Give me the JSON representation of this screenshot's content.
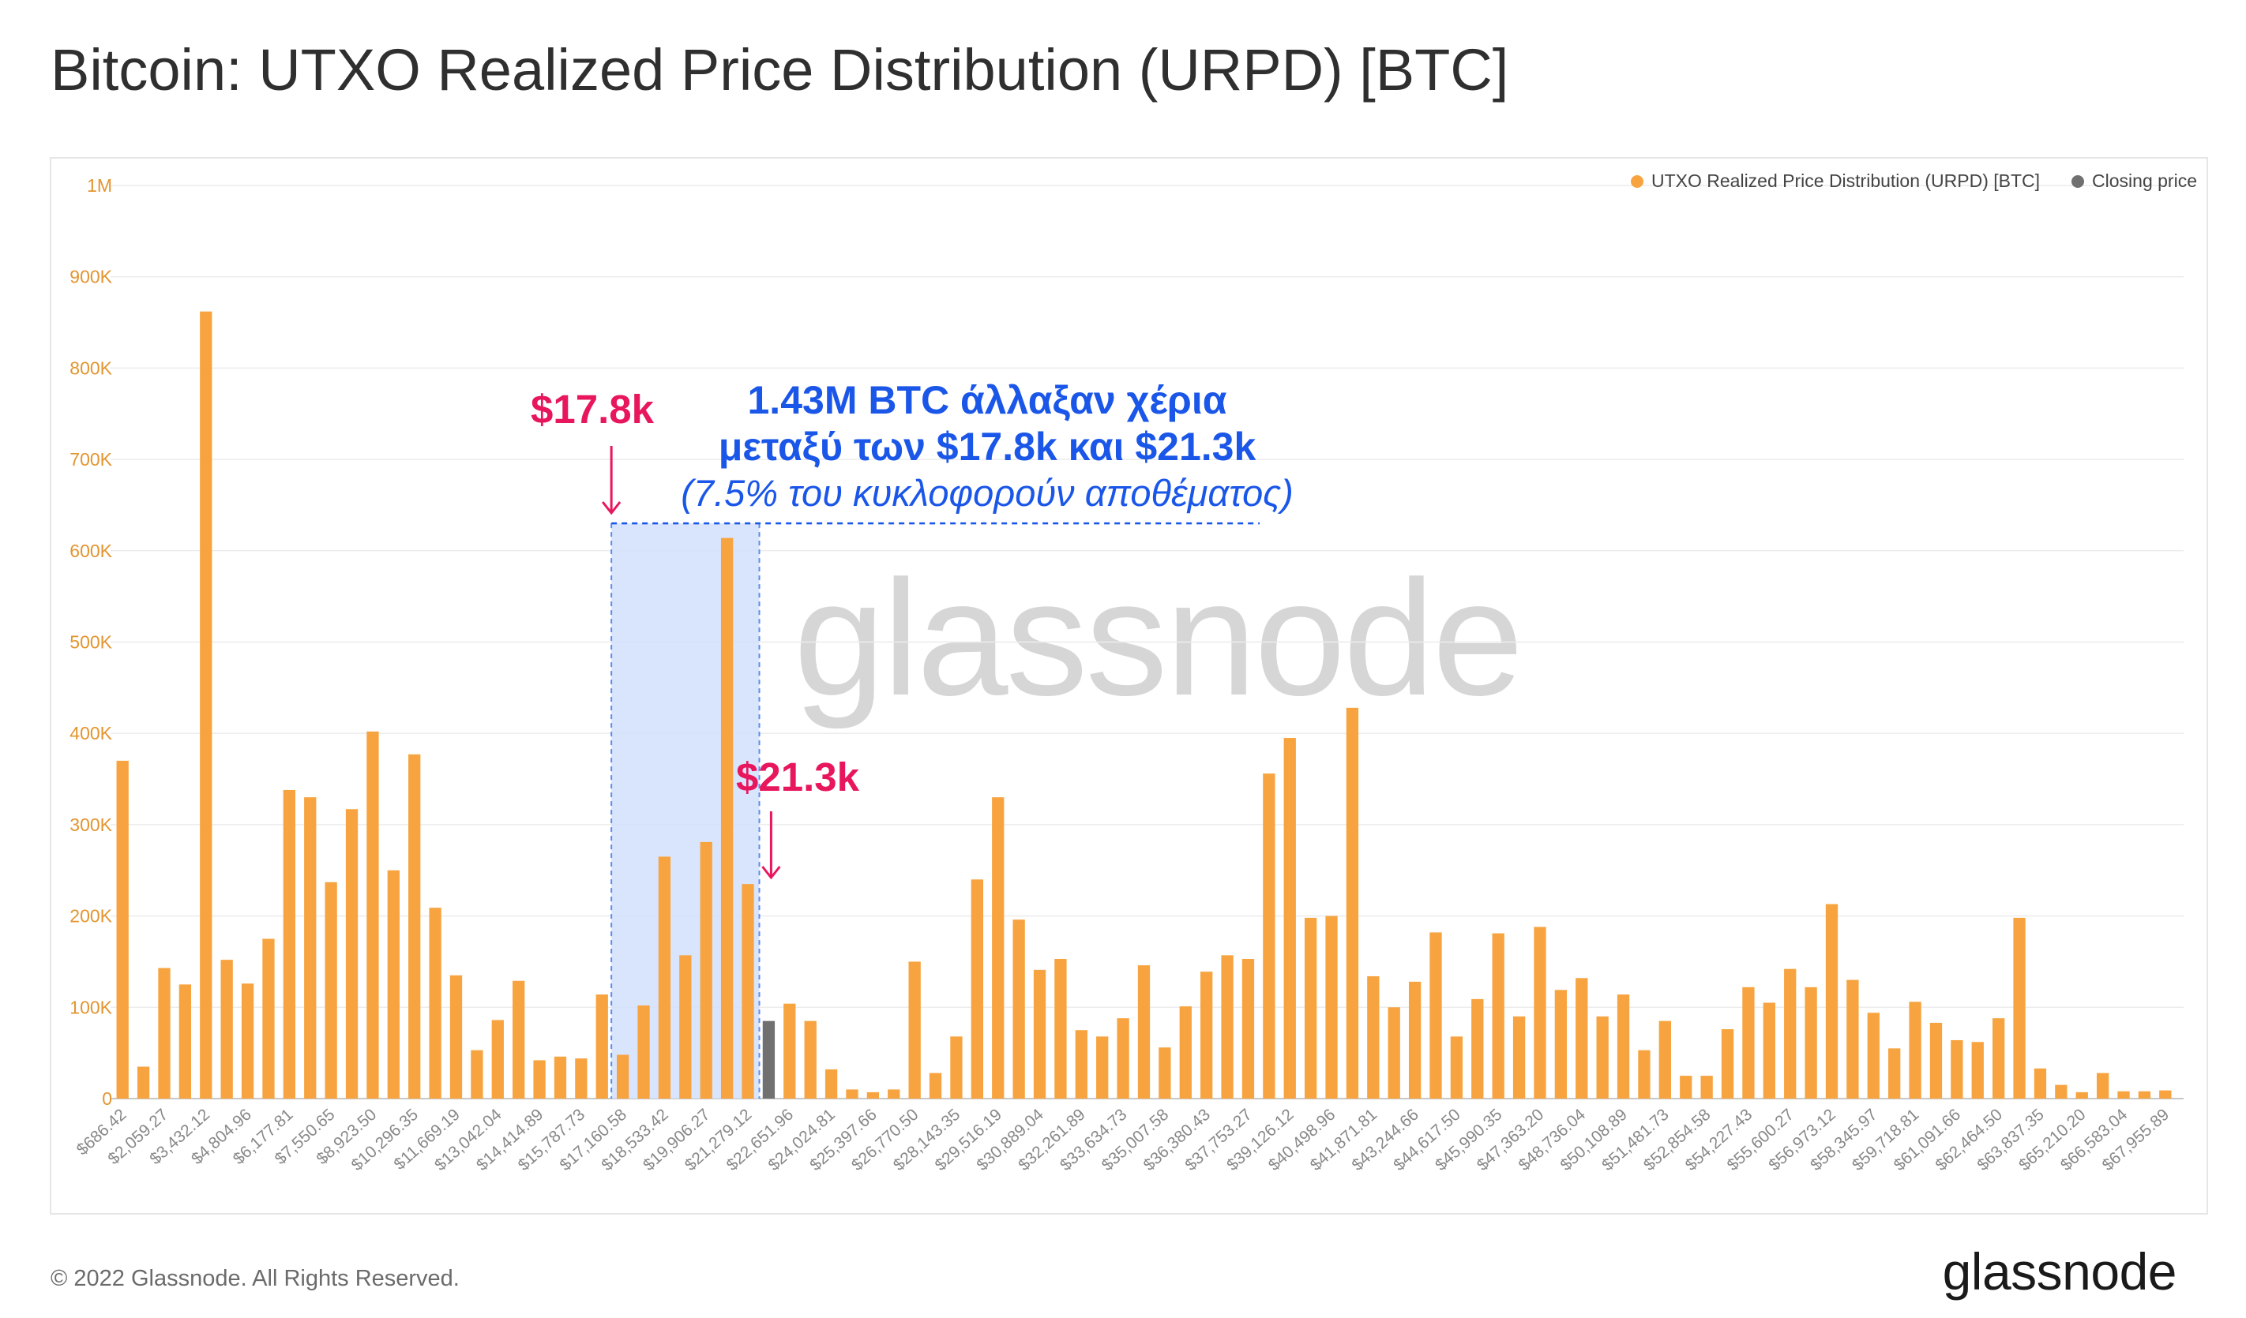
{
  "title": "Bitcoin: UTXO Realized Price Distribution (URPD) [BTC]",
  "footer": {
    "copyright": "© 2022 Glassnode. All Rights Reserved.",
    "logo_text": "glassnode"
  },
  "watermark": "glassnode",
  "legend": [
    {
      "label": "UTXO Realized Price Distribution (URPD) [BTC]",
      "color": "#f7a440"
    },
    {
      "label": "Closing price",
      "color": "#707070"
    }
  ],
  "annotations": {
    "low_price": "$17.8k",
    "high_price": "$21.3k",
    "line1": "1.43M BTC άλλαξαν χέρια",
    "line2": "μεταξύ των $17.8k και $21.3k",
    "line3": "(7.5% του κυκλοφορούν αποθέματος)",
    "highlight_color": "#d2e1fb",
    "accent_blue": "#1a56e8",
    "accent_pink": "#e8175d"
  },
  "chart_data": {
    "type": "bar",
    "title": "Bitcoin: UTXO Realized Price Distribution (URPD) [BTC]",
    "xlabel": "",
    "ylabel": "",
    "ylim": [
      0,
      1000000
    ],
    "y_ticks": [
      0,
      100000,
      200000,
      300000,
      400000,
      500000,
      600000,
      700000,
      800000,
      900000,
      1000000
    ],
    "y_tick_labels": [
      "0",
      "100K",
      "200K",
      "300K",
      "400K",
      "500K",
      "600K",
      "700K",
      "800K",
      "900K",
      "1M"
    ],
    "grid": true,
    "legend_position": "top-right",
    "bar_color": "#f7a440",
    "closing_color": "#707070",
    "closing_index": 31,
    "highlight_range_indices": [
      24,
      30
    ],
    "x_tick_labels": [
      "$686.42",
      "$2,059.27",
      "$3,432.12",
      "$4,804.96",
      "$6,177.81",
      "$7,550.65",
      "$8,923.50",
      "$10,296.35",
      "$11,669.19",
      "$13,042.04",
      "$14,414.89",
      "$15,787.73",
      "$17,160.58",
      "$18,533.42",
      "$19,906.27",
      "$21,279.12",
      "$22,651.96",
      "$24,024.81",
      "$25,397.66",
      "$26,770.50",
      "$28,143.35",
      "$29,516.19",
      "$30,889.04",
      "$32,261.89",
      "$33,634.73",
      "$35,007.58",
      "$36,380.43",
      "$37,753.27",
      "$39,126.12",
      "$40,498.96",
      "$41,871.81",
      "$43,244.66",
      "$44,617.50",
      "$45,990.35",
      "$47,363.20",
      "$48,736.04",
      "$50,108.89",
      "$51,481.73",
      "$52,854.58",
      "$54,227.43",
      "$55,600.27",
      "$56,973.12",
      "$58,345.97",
      "$59,718.81",
      "$61,091.66",
      "$62,464.50",
      "$63,837.35",
      "$65,210.20",
      "$66,583.04",
      "$67,955.89"
    ],
    "values": [
      370000,
      35000,
      143000,
      125000,
      862000,
      152000,
      126000,
      175000,
      338000,
      330000,
      237000,
      317000,
      402000,
      250000,
      377000,
      209000,
      135000,
      53000,
      86000,
      129000,
      42000,
      46000,
      44000,
      114000,
      48000,
      102000,
      265000,
      157000,
      281000,
      614000,
      235000,
      85000,
      104000,
      85000,
      32000,
      10000,
      7000,
      10000,
      150000,
      28000,
      68000,
      240000,
      330000,
      196000,
      141000,
      153000,
      75000,
      68000,
      88000,
      146000,
      56000,
      101000,
      139000,
      157000,
      153000,
      356000,
      395000,
      198000,
      200000,
      428000,
      134000,
      100000,
      128000,
      182000,
      68000,
      109000,
      181000,
      90000,
      188000,
      119000,
      132000,
      90000,
      114000,
      53000,
      85000,
      25000,
      25000,
      76000,
      122000,
      105000,
      142000,
      122000,
      213000,
      130000,
      94000,
      55000,
      106000,
      83000,
      64000,
      62000,
      88000,
      198000,
      33000,
      15000,
      7000,
      28000,
      8000,
      8000,
      9000
    ]
  }
}
